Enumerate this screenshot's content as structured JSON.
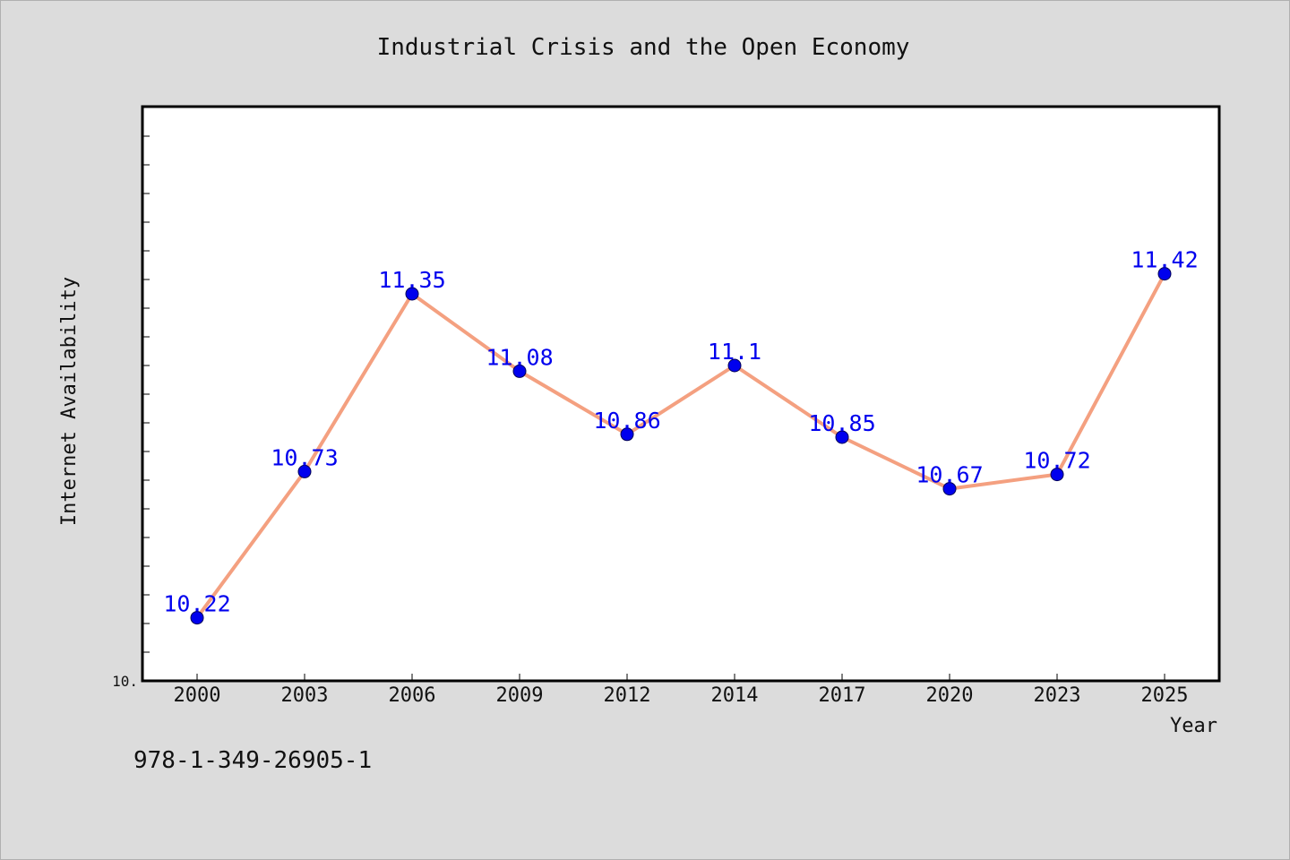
{
  "chart_data": {
    "type": "line",
    "title": "Industrial Crisis and the Open Economy",
    "xlabel": "Year",
    "ylabel": "Internet Availability",
    "categories": [
      "2000",
      "2003",
      "2006",
      "2009",
      "2012",
      "2014",
      "2017",
      "2020",
      "2023",
      "2025"
    ],
    "series": [
      {
        "values": [
          10.22,
          10.73,
          11.35,
          11.08,
          10.86,
          11.1,
          10.85,
          10.67,
          10.72,
          11.42
        ],
        "data_labels": [
          "10.22",
          "10.73",
          "11.35",
          "11.08",
          "10.86",
          "11.1",
          "10.85",
          "10.67",
          "10.72",
          "11.42"
        ],
        "line_color": "#f4a080",
        "marker_color": "#0000ee",
        "label_color": "#0000ee"
      }
    ],
    "ylim": [
      10.0,
      12.0
    ],
    "y_tick_label": "10.",
    "y_minor_tick_step": 0.1,
    "grid": false,
    "legend": "none"
  },
  "footer": {
    "isbn": "978-1-349-26905-1"
  },
  "colors": {
    "background": "#dcdcdc",
    "plot_area": "#ffffff",
    "axis": "#000000",
    "text": "#111111"
  }
}
